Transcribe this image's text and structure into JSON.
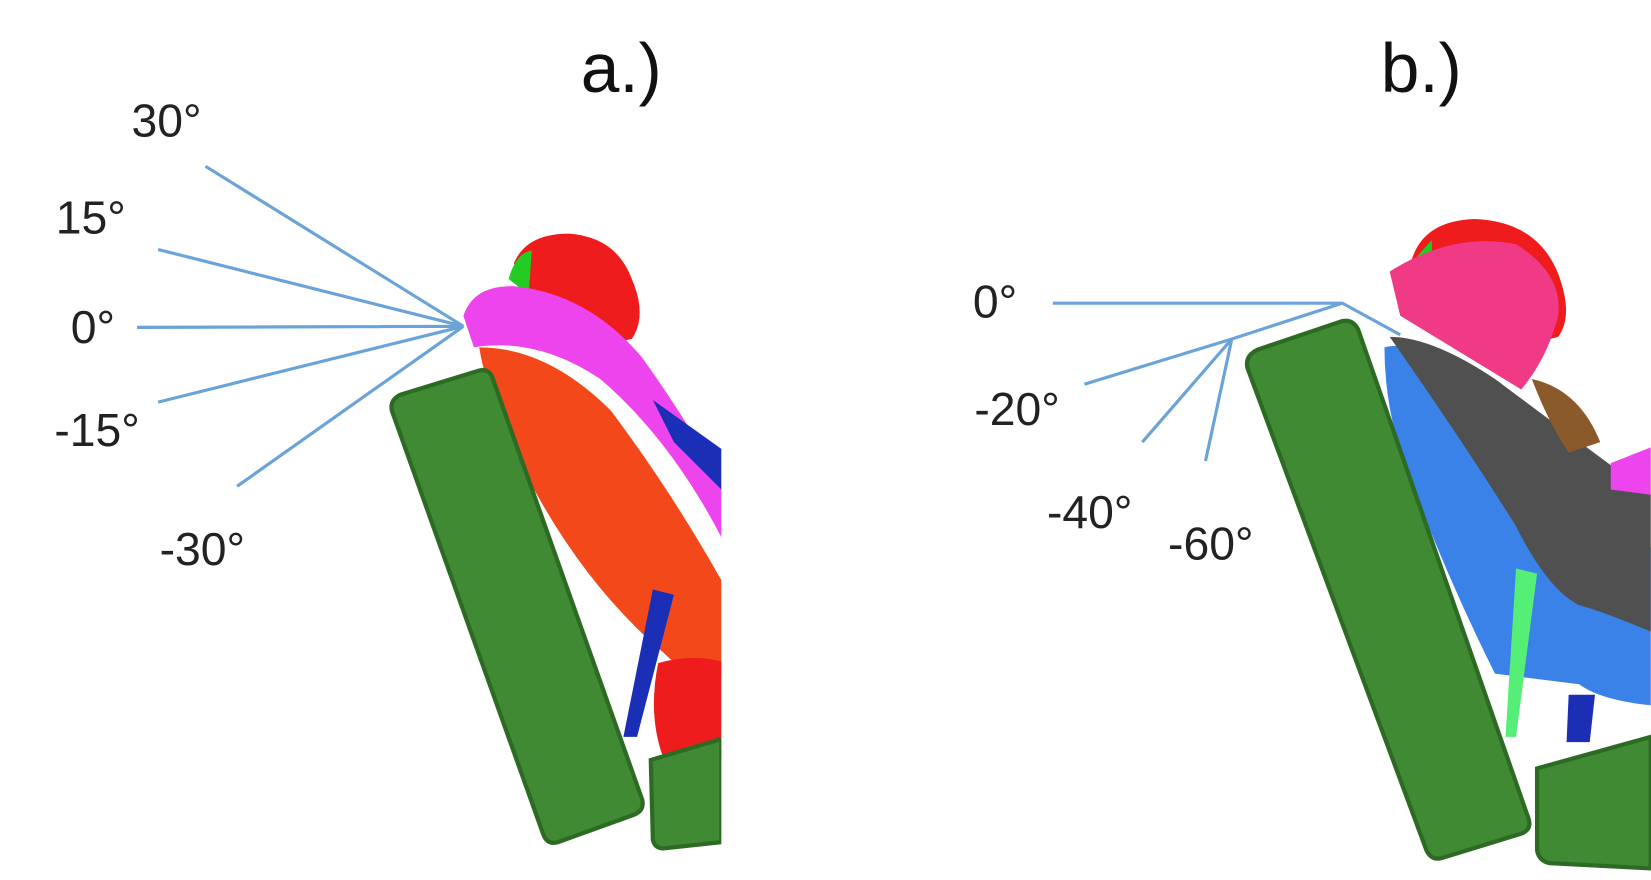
{
  "panels": [
    {
      "label": "a.)",
      "angles": [
        "30°",
        "15°",
        "0°",
        "-15°",
        "-30°"
      ]
    },
    {
      "label": "b.)",
      "angles": [
        "0°",
        "-20°",
        "-40°",
        "-60°"
      ]
    }
  ]
}
